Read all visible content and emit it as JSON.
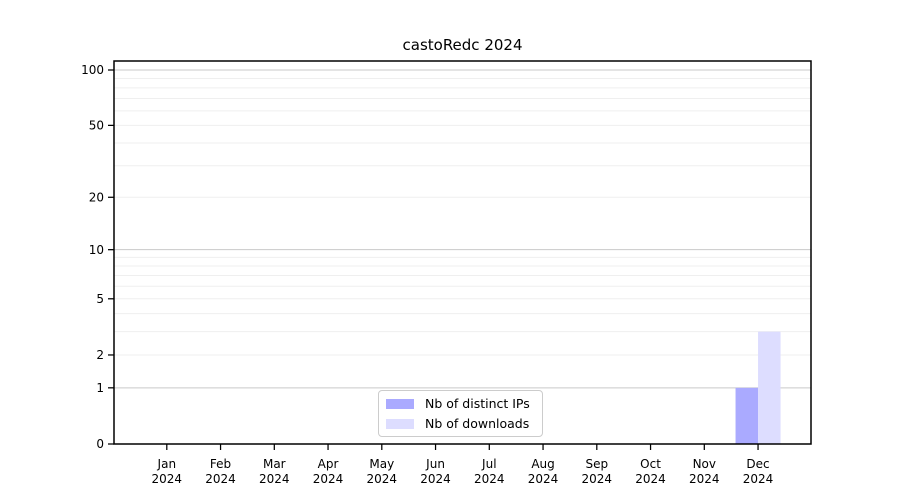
{
  "title": "castoRedc 2024",
  "legend": {
    "items": [
      {
        "label": "Nb of distinct IPs",
        "color": "#aaaaff"
      },
      {
        "label": "Nb of downloads",
        "color": "#ddddff"
      }
    ]
  },
  "chart_data": {
    "type": "bar",
    "title": "castoRedc 2024",
    "xlabel": "",
    "ylabel": "",
    "scale": "log1p",
    "categories": [
      "Jan",
      "Feb",
      "Mar",
      "Apr",
      "May",
      "Jun",
      "Jul",
      "Aug",
      "Sep",
      "Oct",
      "Nov",
      "Dec"
    ],
    "category_year": "2024",
    "series": [
      {
        "name": "Nb of distinct IPs",
        "color": "#aaaaff",
        "values": [
          0,
          0,
          0,
          0,
          0,
          0,
          0,
          0,
          0,
          0,
          0,
          1
        ]
      },
      {
        "name": "Nb of downloads",
        "color": "#ddddff",
        "values": [
          0,
          0,
          0,
          0,
          0,
          0,
          0,
          0,
          0,
          0,
          0,
          3
        ]
      }
    ],
    "y_ticks": [
      0,
      1,
      2,
      5,
      10,
      20,
      50,
      100
    ],
    "ylim": [
      0,
      112
    ],
    "grid": "horizontal",
    "legend_position": "lower center",
    "minor_grid_values": [
      2,
      3,
      4,
      5,
      6,
      7,
      8,
      9,
      20,
      30,
      40,
      50,
      60,
      70,
      80,
      90
    ],
    "major_grid_values": [
      1,
      10,
      100
    ]
  },
  "colors": {
    "background": "#ffffff",
    "axis": "#000000",
    "grid_major": "#c9c9c9",
    "grid_minor": "#efefef",
    "tick_label": "#000000",
    "bar_distinct_ips": "#aaaaff",
    "bar_downloads": "#ddddff",
    "legend_border": "#cccccc"
  }
}
